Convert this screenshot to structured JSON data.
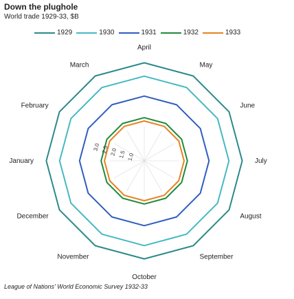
{
  "header": {
    "title": "Down the plughole",
    "subtitle": "World trade 1929-33, $B"
  },
  "source": "League of Nations' World Economic Survey 1932-33",
  "chart_data": {
    "type": "radar",
    "title": "Down the plughole",
    "subtitle": "World trade 1929-33, $B",
    "categories": [
      "April",
      "May",
      "June",
      "July",
      "August",
      "September",
      "October",
      "November",
      "December",
      "January",
      "February",
      "March"
    ],
    "rmax": 3,
    "tick_labels": [
      "1.0",
      "1.5",
      "2.0",
      "2.5",
      "3.0"
    ],
    "series": [
      {
        "name": "1929",
        "color": "#2a8a8a",
        "values": [
          2.95,
          2.95,
          2.95,
          2.95,
          2.95,
          2.95,
          2.95,
          2.95,
          2.95,
          2.95,
          2.95,
          2.95
        ]
      },
      {
        "name": "1930",
        "color": "#45b8c2",
        "values": [
          2.55,
          2.55,
          2.55,
          2.55,
          2.55,
          2.55,
          2.55,
          2.55,
          2.55,
          2.55,
          2.55,
          2.55
        ]
      },
      {
        "name": "1931",
        "color": "#2f5cbf",
        "values": [
          1.95,
          1.95,
          1.95,
          1.95,
          1.95,
          1.95,
          1.95,
          1.95,
          1.95,
          1.95,
          1.95,
          1.95
        ]
      },
      {
        "name": "1932",
        "color": "#1e8a3a",
        "values": [
          1.3,
          1.3,
          1.3,
          1.3,
          1.3,
          1.3,
          1.3,
          1.3,
          1.3,
          1.3,
          1.3,
          1.3
        ]
      },
      {
        "name": "1933",
        "color": "#e6821e",
        "values": [
          1.2,
          1.2,
          1.2,
          1.2,
          1.2,
          1.2,
          1.2,
          1.2,
          1.2,
          1.2,
          1.2,
          1.2
        ]
      }
    ]
  }
}
